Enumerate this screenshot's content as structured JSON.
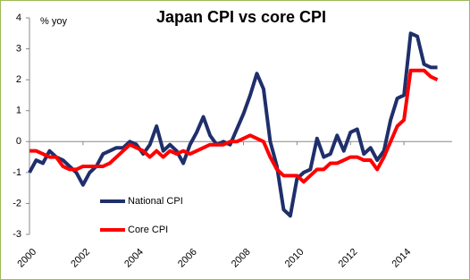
{
  "chart_data": {
    "type": "line",
    "title": "Japan CPI vs core CPI",
    "y_label": "% yoy",
    "x": [
      2000,
      2000.25,
      2000.5,
      2000.75,
      2001,
      2001.25,
      2001.5,
      2001.75,
      2002,
      2002.25,
      2002.5,
      2002.75,
      2003,
      2003.25,
      2003.5,
      2003.75,
      2004,
      2004.25,
      2004.5,
      2004.75,
      2005,
      2005.25,
      2005.5,
      2005.75,
      2006,
      2006.25,
      2006.5,
      2006.75,
      2007,
      2007.25,
      2007.5,
      2007.75,
      2008,
      2008.25,
      2008.5,
      2008.75,
      2009,
      2009.25,
      2009.5,
      2009.75,
      2010,
      2010.25,
      2010.5,
      2010.75,
      2011,
      2011.25,
      2011.5,
      2011.75,
      2012,
      2012.25,
      2012.5,
      2012.75,
      2013,
      2013.25,
      2013.5,
      2013.75,
      2014,
      2014.25,
      2014.5,
      2014.75,
      2015,
      2015.25
    ],
    "series": [
      {
        "name": "National CPI",
        "color": "#1f2f6b",
        "values": [
          -1.0,
          -0.6,
          -0.7,
          -0.3,
          -0.5,
          -0.6,
          -0.8,
          -1.0,
          -1.4,
          -1.0,
          -0.8,
          -0.4,
          -0.3,
          -0.2,
          -0.2,
          0.0,
          -0.1,
          -0.4,
          -0.1,
          0.5,
          -0.3,
          -0.1,
          -0.3,
          -0.7,
          -0.1,
          0.3,
          0.8,
          0.2,
          -0.1,
          0.0,
          -0.1,
          0.4,
          0.9,
          1.5,
          2.2,
          1.7,
          0.0,
          -0.8,
          -2.2,
          -2.4,
          -1.2,
          -1.0,
          -0.9,
          0.1,
          -0.5,
          -0.4,
          0.2,
          -0.3,
          0.3,
          0.4,
          -0.4,
          -0.2,
          -0.6,
          -0.3,
          0.7,
          1.4,
          1.5,
          3.5,
          3.4,
          2.5,
          2.4,
          2.4
        ]
      },
      {
        "name": "Core CPI",
        "color": "#ff0000",
        "values": [
          -0.3,
          -0.3,
          -0.4,
          -0.5,
          -0.5,
          -0.8,
          -0.9,
          -0.9,
          -0.8,
          -0.8,
          -0.8,
          -0.8,
          -0.7,
          -0.5,
          -0.3,
          -0.1,
          -0.2,
          -0.3,
          -0.5,
          -0.3,
          -0.5,
          -0.3,
          -0.4,
          -0.3,
          -0.4,
          -0.3,
          -0.2,
          -0.1,
          -0.1,
          -0.1,
          0.0,
          0.0,
          0.1,
          0.2,
          0.1,
          0.0,
          -0.5,
          -0.9,
          -1.1,
          -1.1,
          -1.1,
          -1.3,
          -1.1,
          -0.9,
          -0.9,
          -0.7,
          -0.7,
          -0.6,
          -0.5,
          -0.5,
          -0.6,
          -0.6,
          -0.9,
          -0.5,
          0.0,
          0.5,
          0.7,
          2.3,
          2.3,
          2.3,
          2.1,
          2.0
        ]
      }
    ],
    "xlim": [
      2000,
      2015.8
    ],
    "xticks": [
      2000,
      2002,
      2004,
      2006,
      2008,
      2010,
      2012,
      2014
    ],
    "ylim": [
      -3,
      4
    ],
    "yticks": [
      -3,
      -2,
      -1,
      0,
      1,
      2,
      3,
      4
    ],
    "grid": false
  }
}
